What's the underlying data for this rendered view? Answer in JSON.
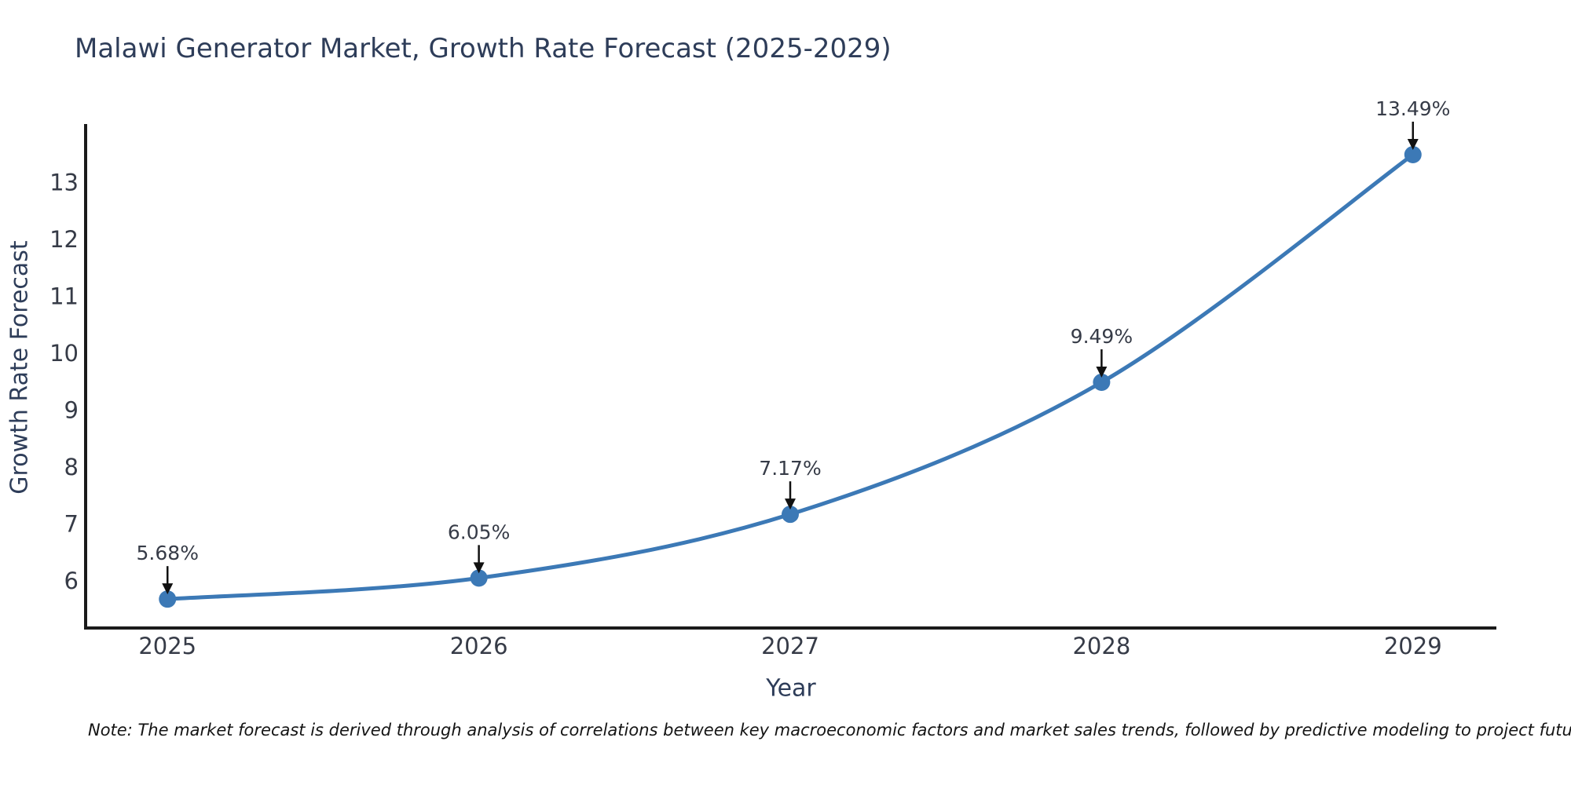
{
  "page": {
    "background_color": "#ffffff"
  },
  "chart_data": {
    "type": "line",
    "title": "Malawi Generator Market, Growth Rate Forecast (2025-2029)",
    "xlabel": "Year",
    "ylabel": "Growth Rate Forecast",
    "categories": [
      "2025",
      "2026",
      "2027",
      "2028",
      "2029"
    ],
    "x": [
      2025,
      2026,
      2027,
      2028,
      2029
    ],
    "series": [
      {
        "name": "Growth Rate Forecast",
        "values": [
          5.68,
          6.05,
          7.17,
          9.49,
          13.49
        ]
      }
    ],
    "annotations": [
      "5.68%",
      "6.05%",
      "7.17%",
      "9.49%",
      "13.49%"
    ],
    "y_ticks": [
      6,
      7,
      8,
      9,
      10,
      11,
      12,
      13
    ],
    "xlim": [
      2024.737,
      2029.268
    ],
    "ylim": [
      5.172,
      14.028
    ],
    "grid": false,
    "legend": "none",
    "line_color": "#3c79b6",
    "marker_color": "#3c79b6",
    "axis_color": "#1a1a1a",
    "tick_color": "#363b47",
    "annotation_color": "#363b47",
    "arrow_color": "#111111"
  },
  "footer": {
    "note": "Note: The market forecast is derived through analysis of correlations between key macroeconomic factors and market sales trends, followed by predictive modeling to project future sales."
  }
}
